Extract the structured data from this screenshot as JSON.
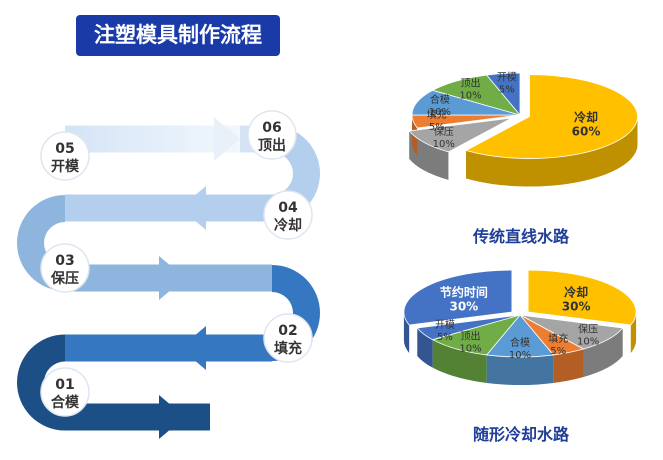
{
  "title": "注塑模具制作流程",
  "flow": {
    "steps": [
      {
        "num": "01",
        "label": "合模"
      },
      {
        "num": "02",
        "label": "填充"
      },
      {
        "num": "03",
        "label": "保压"
      },
      {
        "num": "04",
        "label": "冷却"
      },
      {
        "num": "05",
        "label": "开模"
      },
      {
        "num": "06",
        "label": "顶出"
      }
    ],
    "band_colors": [
      "#1c4f86",
      "#3577c0",
      "#8eb5de",
      "#b4cfee",
      "#d4e4f6"
    ]
  },
  "chart_data": [
    {
      "type": "pie",
      "title": "传统直线水路",
      "slices": [
        {
          "name": "冷却",
          "value": 60,
          "label": "60%",
          "color": "#ffc000",
          "exploded": true
        },
        {
          "name": "保压",
          "value": 10,
          "label": "10%",
          "color": "#a5a5a5",
          "exploded": true
        },
        {
          "name": "填充",
          "value": 5,
          "label": "5%",
          "color": "#ed7d31",
          "exploded": false
        },
        {
          "name": "合模",
          "value": 10,
          "label": "10%",
          "color": "#5b9bd5",
          "exploded": false
        },
        {
          "name": "顶出",
          "value": 10,
          "label": "10%",
          "color": "#70ad47",
          "exploded": false
        },
        {
          "name": "开模",
          "value": 5,
          "label": "5%",
          "color": "#4472c4",
          "exploded": false
        }
      ]
    },
    {
      "type": "pie",
      "title": "随形冷却水路",
      "slices": [
        {
          "name": "冷却",
          "value": 30,
          "label": "30%",
          "color": "#ffc000",
          "exploded": true
        },
        {
          "name": "保压",
          "value": 10,
          "label": "10%",
          "color": "#a5a5a5",
          "exploded": false
        },
        {
          "name": "填充",
          "value": 5,
          "label": "5%",
          "color": "#ed7d31",
          "exploded": false
        },
        {
          "name": "合模",
          "value": 10,
          "label": "10%",
          "color": "#5b9bd5",
          "exploded": false
        },
        {
          "name": "顶出",
          "value": 10,
          "label": "10%",
          "color": "#70ad47",
          "exploded": false
        },
        {
          "name": "开模",
          "value": 5,
          "label": "5%",
          "color": "#4472c4",
          "exploded": false
        },
        {
          "name": "节约时间",
          "value": 30,
          "label": "30%",
          "color": "#4472c4",
          "exploded": true
        }
      ]
    }
  ]
}
